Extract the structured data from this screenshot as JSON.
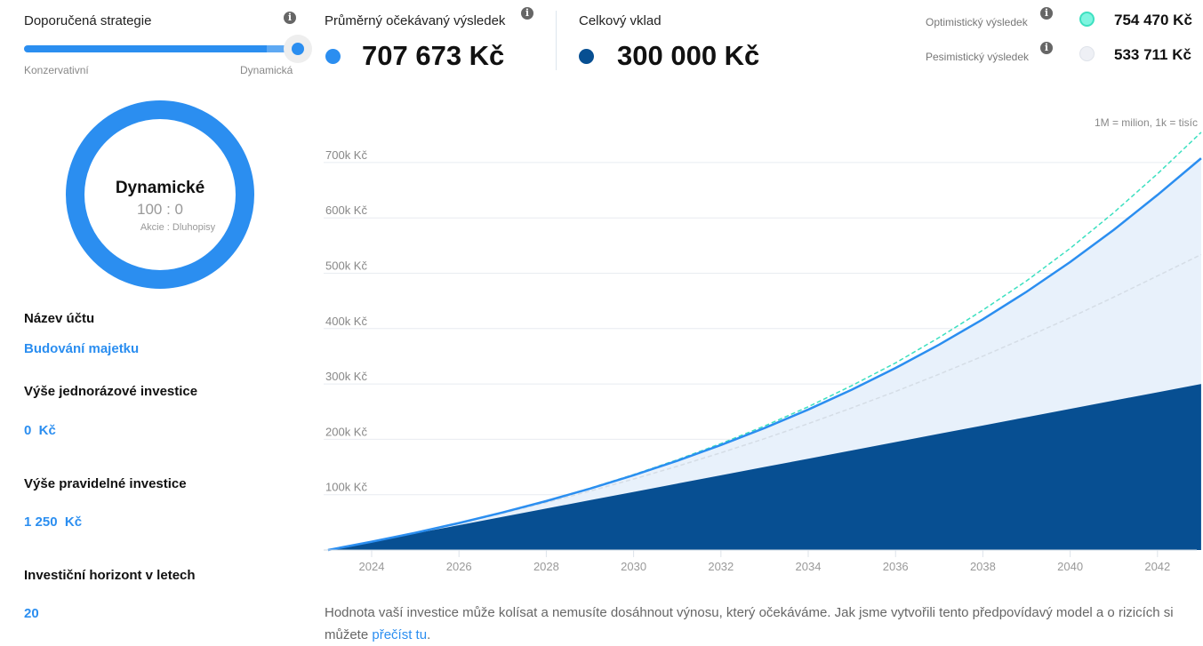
{
  "strategy": {
    "title": "Doporučená strategie",
    "min_label": "Konzervativní",
    "max_label": "Dynamická",
    "slider_value_pct": 100,
    "donut": {
      "name": "Dynamické",
      "ratio": "100 : 0",
      "ratio_label": "Akcie : Dluhopisy",
      "color": "#2b8ef0"
    }
  },
  "summary": {
    "expected": {
      "label": "Průměrný očekávaný výsledek",
      "value": "707 673 Kč",
      "color": "#2b8ef0"
    },
    "deposit": {
      "label": "Celkový vklad",
      "value": "300 000 Kč",
      "color": "#074f92"
    },
    "optimistic": {
      "label": "Optimistický výsledek",
      "value": "754 470 Kč",
      "color": "#7ff5e0"
    },
    "pessimistic": {
      "label": "Pesimistický výsledek",
      "value": "533 711 Kč",
      "color": "#eef0f5"
    }
  },
  "form": [
    {
      "label": "Název účtu",
      "value": "Budování majetku"
    },
    {
      "label": "Výše jednorázové investice",
      "value": "0  Kč"
    },
    {
      "label": "Výše pravidelné investice",
      "value": "1 250  Kč"
    },
    {
      "label": "Investiční horizont v letech",
      "value": "20"
    }
  ],
  "chart_data": {
    "type": "area",
    "note": "1M = milion, 1k = tisíc",
    "x": [
      2023,
      2024,
      2025,
      2026,
      2027,
      2028,
      2029,
      2030,
      2031,
      2032,
      2033,
      2034,
      2035,
      2036,
      2037,
      2038,
      2039,
      2040,
      2041,
      2042,
      2043
    ],
    "xlim": [
      2022.9,
      2042.9
    ],
    "ylim": [
      0,
      754470
    ],
    "x_ticks": [
      "2024",
      "2026",
      "2028",
      "2030",
      "2032",
      "2034",
      "2036",
      "2038",
      "2040",
      "2042"
    ],
    "y_ticks": [
      {
        "v": 100000,
        "label": "100k Kč"
      },
      {
        "v": 200000,
        "label": "200k Kč"
      },
      {
        "v": 300000,
        "label": "300k Kč"
      },
      {
        "v": 400000,
        "label": "400k Kč"
      },
      {
        "v": 500000,
        "label": "500k Kč"
      },
      {
        "v": 600000,
        "label": "600k Kč"
      },
      {
        "v": 700000,
        "label": "700k Kč"
      }
    ],
    "grid": true,
    "series": [
      {
        "key": "deposit",
        "style": "area",
        "color": "#074f92",
        "values": [
          0,
          15000,
          30000,
          45000,
          60000,
          75000,
          90000,
          105000,
          120000,
          135000,
          150000,
          165000,
          180000,
          195000,
          210000,
          225000,
          240000,
          255000,
          270000,
          285000,
          300000
        ]
      },
      {
        "key": "expected",
        "style": "line-area",
        "color": "#2b8ef0",
        "fill": "#e8f1fb",
        "values": [
          0,
          15000,
          31200,
          48800,
          67900,
          88500,
          110900,
          135100,
          161300,
          189700,
          220400,
          253700,
          289800,
          328800,
          371100,
          416900,
          466500,
          520200,
          578400,
          641400,
          707673
        ]
      },
      {
        "key": "optimistic",
        "style": "dashed",
        "color": "#3de0c0",
        "values": [
          0,
          15000,
          31300,
          48900,
          68100,
          88900,
          111600,
          136200,
          163000,
          192300,
          224000,
          258800,
          297100,
          338000,
          384000,
          433400,
          486200,
          545000,
          609600,
          679600,
          754470
        ]
      },
      {
        "key": "pessimistic",
        "style": "dashed",
        "color": "#d5dde6",
        "values": [
          0,
          15000,
          31000,
          48100,
          66400,
          85800,
          106500,
          128200,
          151300,
          175700,
          201200,
          228300,
          256800,
          286400,
          317700,
          350200,
          384400,
          419800,
          456900,
          495200,
          533711
        ]
      }
    ]
  },
  "disclaimer": {
    "text": "Hodnota vaší investice může kolísat a nemusíte dosáhnout výnosu, který očekáváme. Jak jsme vytvořili tento předpovídavý model a o rizicích si můžete ",
    "link": "přečíst tu",
    "end": "."
  }
}
